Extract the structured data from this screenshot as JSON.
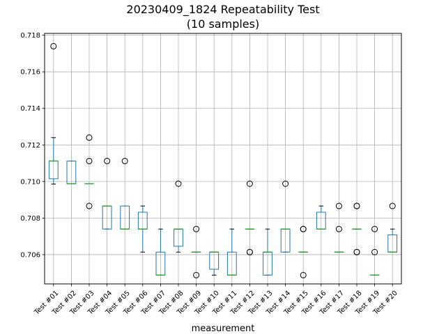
{
  "chart_data": {
    "type": "box",
    "title_line1": "20230409_1824 Repeatability Test",
    "title_line2": "(10 samples)",
    "xlabel": "measurement",
    "ylabel": "",
    "ylim": [
      0.7044,
      0.7181
    ],
    "yticks": [
      "0.706",
      "0.708",
      "0.710",
      "0.712",
      "0.714",
      "0.716",
      "0.718"
    ],
    "grid": true,
    "colors": {
      "box": "#1f77b4",
      "median": "#2ca02c",
      "whisker": "#000000",
      "grid": "#b0b0b0"
    },
    "series": [
      {
        "label": "Test #01",
        "q1": 0.71015,
        "q3": 0.71112,
        "median": 0.71112,
        "wlow": 0.70986,
        "whigh": 0.7124,
        "outliers": [
          0.7174
        ]
      },
      {
        "label": "Test #02",
        "q1": 0.70988,
        "q3": 0.71112,
        "median": 0.70988,
        "wlow": 0.70988,
        "whigh": 0.71112,
        "outliers": []
      },
      {
        "label": "Test #03",
        "q1": 0.70988,
        "q3": 0.70988,
        "median": 0.70988,
        "wlow": 0.70988,
        "whigh": 0.70988,
        "outliers": [
          0.7124,
          0.71112,
          0.70866
        ]
      },
      {
        "label": "Test #04",
        "q1": 0.7074,
        "q3": 0.70866,
        "median": 0.70866,
        "wlow": 0.7074,
        "whigh": 0.70866,
        "outliers": [
          0.71112
        ]
      },
      {
        "label": "Test #05",
        "q1": 0.7074,
        "q3": 0.70866,
        "median": 0.7074,
        "wlow": 0.7074,
        "whigh": 0.70866,
        "outliers": [
          0.71112
        ]
      },
      {
        "label": "Test #06",
        "q1": 0.7074,
        "q3": 0.70832,
        "median": 0.7074,
        "wlow": 0.70614,
        "whigh": 0.70866,
        "outliers": []
      },
      {
        "label": "Test #07",
        "q1": 0.70488,
        "q3": 0.70614,
        "median": 0.70488,
        "wlow": 0.70488,
        "whigh": 0.7074,
        "outliers": []
      },
      {
        "label": "Test #08",
        "q1": 0.70646,
        "q3": 0.7074,
        "median": 0.7074,
        "wlow": 0.70614,
        "whigh": 0.7074,
        "outliers": [
          0.70988
        ]
      },
      {
        "label": "Test #09",
        "q1": 0.70614,
        "q3": 0.70614,
        "median": 0.70614,
        "wlow": 0.70614,
        "whigh": 0.70614,
        "outliers": [
          0.7074,
          0.70488
        ]
      },
      {
        "label": "Test #10",
        "q1": 0.7052,
        "q3": 0.70614,
        "median": 0.70614,
        "wlow": 0.70488,
        "whigh": 0.70614,
        "outliers": []
      },
      {
        "label": "Test #11",
        "q1": 0.70488,
        "q3": 0.70614,
        "median": 0.70488,
        "wlow": 0.70488,
        "whigh": 0.7074,
        "outliers": []
      },
      {
        "label": "Test #12",
        "q1": 0.7074,
        "q3": 0.7074,
        "median": 0.7074,
        "wlow": 0.7074,
        "whigh": 0.7074,
        "outliers": [
          0.70988,
          0.70614,
          0.70614
        ]
      },
      {
        "label": "Test #13",
        "q1": 0.70488,
        "q3": 0.70614,
        "median": 0.70614,
        "wlow": 0.70488,
        "whigh": 0.7074,
        "outliers": []
      },
      {
        "label": "Test #14",
        "q1": 0.70614,
        "q3": 0.7074,
        "median": 0.7074,
        "wlow": 0.70614,
        "whigh": 0.7074,
        "outliers": [
          0.70988
        ]
      },
      {
        "label": "Test #15",
        "q1": 0.70614,
        "q3": 0.70614,
        "median": 0.70614,
        "wlow": 0.70614,
        "whigh": 0.70614,
        "outliers": [
          0.7074,
          0.7074,
          0.70488
        ]
      },
      {
        "label": "Test #16",
        "q1": 0.7074,
        "q3": 0.70832,
        "median": 0.7074,
        "wlow": 0.7074,
        "whigh": 0.70866,
        "outliers": []
      },
      {
        "label": "Test #17",
        "q1": 0.70614,
        "q3": 0.70614,
        "median": 0.70614,
        "wlow": 0.70614,
        "whigh": 0.70614,
        "outliers": [
          0.70866,
          0.7074
        ]
      },
      {
        "label": "Test #18",
        "q1": 0.7074,
        "q3": 0.7074,
        "median": 0.7074,
        "wlow": 0.7074,
        "whigh": 0.7074,
        "outliers": [
          0.70866,
          0.70866,
          0.70614,
          0.70614
        ]
      },
      {
        "label": "Test #19",
        "q1": 0.70488,
        "q3": 0.70488,
        "median": 0.70488,
        "wlow": 0.70488,
        "whigh": 0.70488,
        "outliers": [
          0.7074,
          0.70614
        ]
      },
      {
        "label": "Test #20",
        "q1": 0.70614,
        "q3": 0.70708,
        "median": 0.70614,
        "wlow": 0.70614,
        "whigh": 0.7074,
        "outliers": [
          0.70866
        ]
      }
    ]
  }
}
